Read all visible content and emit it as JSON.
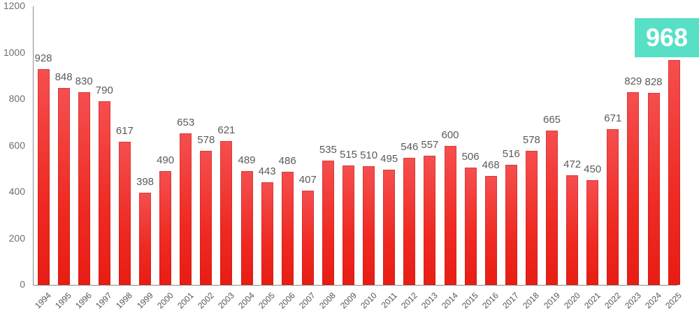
{
  "chart_data": {
    "type": "bar",
    "title": "",
    "xlabel": "",
    "ylabel": "",
    "ylim": [
      0,
      1200
    ],
    "yticks": [
      0,
      200,
      400,
      600,
      800,
      1000,
      1200
    ],
    "grid": false,
    "legend": null,
    "categories": [
      "1994",
      "1995",
      "1996",
      "1997",
      "1998",
      "1999",
      "2000",
      "2001",
      "2002",
      "2003",
      "2004",
      "2005",
      "2006",
      "2007",
      "2008",
      "2009",
      "2010",
      "2011",
      "2012",
      "2013",
      "2014",
      "2015",
      "2016",
      "2017",
      "2018",
      "2019",
      "2020",
      "2021",
      "2022",
      "2023",
      "2024",
      "2025"
    ],
    "values": [
      928,
      848,
      830,
      790,
      617,
      398,
      490,
      653,
      578,
      621,
      489,
      443,
      486,
      407,
      535,
      515,
      510,
      495,
      546,
      557,
      600,
      506,
      468,
      516,
      578,
      665,
      472,
      450,
      671,
      829,
      828,
      968
    ],
    "bar_color": "#ef2a22",
    "highlight": {
      "category": "2025",
      "value": "968",
      "color": "#57e0c6"
    }
  }
}
